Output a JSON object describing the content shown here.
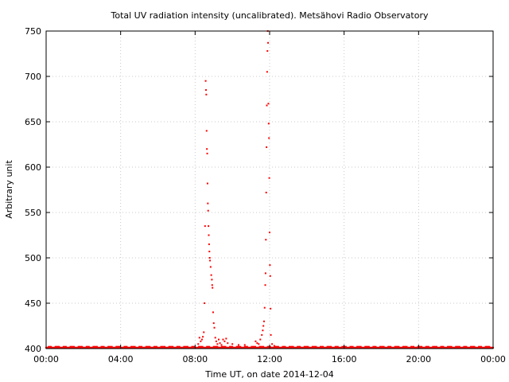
{
  "chart_data": {
    "type": "scatter",
    "title": "Total UV radiation intensity (uncalibrated). Metsähovi Radio Observatory",
    "xlabel": "Time UT, on date 2014-12-04",
    "ylabel": "Arbitrary unit",
    "xlim": [
      "00:00",
      "24:00"
    ],
    "ylim": [
      400,
      750
    ],
    "x_ticks": [
      "00:00",
      "04:00",
      "08:00",
      "12:00",
      "16:00",
      "20:00",
      "00:00"
    ],
    "y_ticks": [
      400,
      450,
      500,
      550,
      600,
      650,
      700,
      750
    ],
    "grid": true,
    "marker_color": "#ff0000",
    "baseline": {
      "value": 401,
      "from": "00:00",
      "to": "24:00"
    },
    "series": [
      {
        "points": [
          [
            "08:10",
            405
          ],
          [
            "08:14",
            412
          ],
          [
            "08:18",
            408
          ],
          [
            "08:22",
            410
          ],
          [
            "08:25",
            413
          ],
          [
            "08:28",
            418
          ],
          [
            "08:30",
            450
          ],
          [
            "08:32",
            535
          ],
          [
            "08:34",
            695
          ],
          [
            "08:35",
            685
          ],
          [
            "08:36",
            680
          ],
          [
            "08:37",
            640
          ],
          [
            "08:38",
            620
          ],
          [
            "08:39",
            615
          ],
          [
            "08:40",
            582
          ],
          [
            "08:41",
            560
          ],
          [
            "08:42",
            552
          ],
          [
            "08:43",
            535
          ],
          [
            "08:44",
            525
          ],
          [
            "08:45",
            515
          ],
          [
            "08:46",
            507
          ],
          [
            "08:47",
            500
          ],
          [
            "08:48",
            497
          ],
          [
            "08:50",
            490
          ],
          [
            "08:52",
            481
          ],
          [
            "08:54",
            476
          ],
          [
            "08:55",
            470
          ],
          [
            "08:56",
            467
          ],
          [
            "08:58",
            440
          ],
          [
            "09:00",
            428
          ],
          [
            "09:02",
            423
          ],
          [
            "09:05",
            412
          ],
          [
            "09:08",
            408
          ],
          [
            "09:12",
            405
          ],
          [
            "09:16",
            410
          ],
          [
            "09:20",
            406
          ],
          [
            "09:25",
            404
          ],
          [
            "09:30",
            410
          ],
          [
            "09:35",
            408
          ],
          [
            "09:40",
            411
          ],
          [
            "09:45",
            406
          ],
          [
            "10:00",
            405
          ],
          [
            "10:20",
            404
          ],
          [
            "10:40",
            404
          ],
          [
            "11:15",
            408
          ],
          [
            "11:20",
            406
          ],
          [
            "11:25",
            405
          ],
          [
            "11:30",
            410
          ],
          [
            "11:35",
            415
          ],
          [
            "11:38",
            420
          ],
          [
            "11:40",
            425
          ],
          [
            "11:42",
            430
          ],
          [
            "11:44",
            445
          ],
          [
            "11:46",
            470
          ],
          [
            "11:47",
            483
          ],
          [
            "11:48",
            520
          ],
          [
            "11:49",
            572
          ],
          [
            "11:50",
            622
          ],
          [
            "11:51",
            668
          ],
          [
            "11:52",
            705
          ],
          [
            "11:53",
            728
          ],
          [
            "11:54",
            750
          ],
          [
            "11:55",
            737
          ],
          [
            "11:56",
            670
          ],
          [
            "11:57",
            648
          ],
          [
            "11:58",
            632
          ],
          [
            "11:59",
            588
          ],
          [
            "12:00",
            528
          ],
          [
            "12:01",
            492
          ],
          [
            "12:02",
            480
          ],
          [
            "12:03",
            444
          ],
          [
            "12:04",
            415
          ],
          [
            "12:08",
            405
          ],
          [
            "12:15",
            403
          ]
        ]
      }
    ]
  }
}
